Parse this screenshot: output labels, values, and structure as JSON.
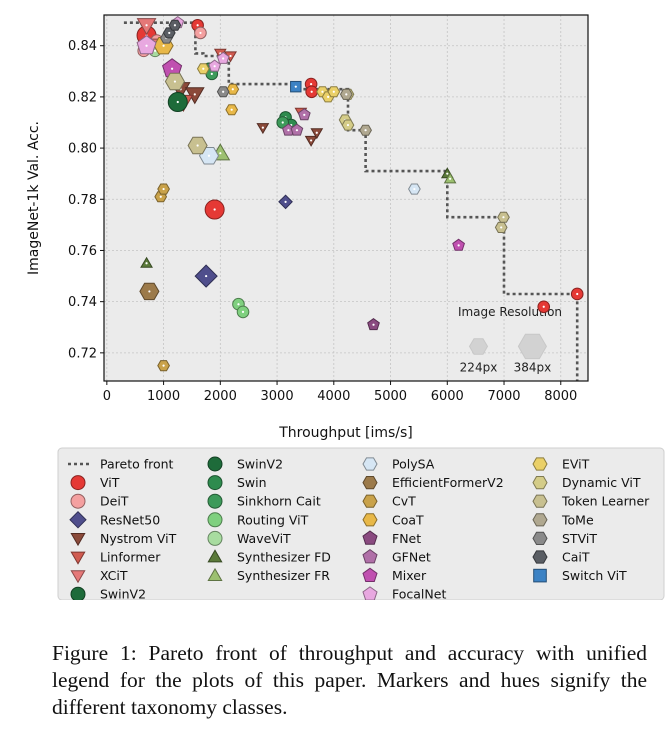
{
  "chart_data": {
    "type": "scatter",
    "xlabel": "Throughput [ims/s]",
    "ylabel": "ImageNet-1k Val. Acc.",
    "xlim": [
      -50,
      8480
    ],
    "ylim": [
      0.709,
      0.852
    ],
    "xticks": [
      0,
      1000,
      2000,
      3000,
      4000,
      5000,
      6000,
      7000,
      8000
    ],
    "xtick_labels": [
      "0",
      "1000",
      "2000",
      "3000",
      "4000",
      "5000",
      "6000",
      "7000",
      "8000"
    ],
    "yticks": [
      0.72,
      0.74,
      0.76,
      0.78,
      0.8,
      0.82,
      0.84
    ],
    "ytick_labels": [
      "0.72",
      "0.74",
      "0.76",
      "0.78",
      "0.80",
      "0.82",
      "0.84"
    ],
    "grid": true,
    "legend_position": "bottom",
    "pareto_front": {
      "name": "Pareto front",
      "x": [
        300,
        1560,
        1560,
        1700,
        1700,
        2150,
        2150,
        3300,
        3300,
        4250,
        4250,
        4560,
        4560,
        6000,
        6000,
        7000,
        7000,
        8290,
        8290
      ],
      "y": [
        0.849,
        0.849,
        0.837,
        0.837,
        0.836,
        0.836,
        0.825,
        0.825,
        0.823,
        0.823,
        0.807,
        0.807,
        0.791,
        0.791,
        0.773,
        0.773,
        0.743,
        0.743,
        0.709
      ]
    },
    "resolution_key": {
      "title": "Image Resolution",
      "items": [
        {
          "label": "224px",
          "x": 6550,
          "y": 0.7225
        },
        {
          "label": "384px",
          "x": 7500,
          "y": 0.7225
        }
      ]
    },
    "series": [
      {
        "name": "ViT",
        "marker": "circle",
        "color": "#e53935",
        "points": [
          [
            1900,
            0.776,
            1
          ],
          [
            700,
            0.844,
            1
          ],
          [
            1600,
            0.848,
            0
          ],
          [
            3600,
            0.825,
            0
          ],
          [
            3610,
            0.822,
            0
          ],
          [
            7700,
            0.738,
            0
          ],
          [
            8290,
            0.743,
            0
          ]
        ]
      },
      {
        "name": "DeiT",
        "marker": "circle",
        "color": "#f4a0a0",
        "points": [
          [
            650,
            0.838,
            0
          ],
          [
            880,
            0.842,
            0
          ],
          [
            1650,
            0.845,
            0
          ]
        ]
      },
      {
        "name": "ResNet50",
        "marker": "diamond",
        "color": "#4f4e8c",
        "points": [
          [
            1750,
            0.75,
            1
          ],
          [
            3150,
            0.779,
            0
          ]
        ]
      },
      {
        "name": "Nystrom ViT",
        "marker": "triangle-down",
        "color": "#8b4a3a",
        "points": [
          [
            1300,
            0.823,
            1
          ],
          [
            1550,
            0.821,
            1
          ],
          [
            2750,
            0.808,
            0
          ],
          [
            3600,
            0.803,
            0
          ],
          [
            3700,
            0.806,
            0
          ]
        ]
      },
      {
        "name": "Linformer",
        "marker": "triangle-down",
        "color": "#d05b50",
        "points": [
          [
            1350,
            0.818,
            1
          ],
          [
            2000,
            0.837,
            0
          ],
          [
            2180,
            0.836,
            0
          ],
          [
            3420,
            0.814,
            0
          ]
        ]
      },
      {
        "name": "XCiT",
        "marker": "triangle-down",
        "color": "#e57878",
        "points": [
          [
            700,
            0.848,
            1
          ],
          [
            920,
            0.84,
            1
          ]
        ]
      },
      {
        "name": "SwinV2",
        "marker": "circle",
        "color": "#1e6b3a",
        "points": [
          [
            1250,
            0.818,
            1
          ]
        ]
      },
      {
        "name": "Swin",
        "marker": "circle",
        "color": "#2e8b4e",
        "points": [
          [
            1800,
            0.831,
            0
          ],
          [
            3150,
            0.812,
            0
          ],
          [
            3250,
            0.809,
            0
          ]
        ]
      },
      {
        "name": "Sinkhorn Cait",
        "marker": "circle",
        "color": "#3d9a5a",
        "points": [
          [
            1850,
            0.829,
            0
          ],
          [
            3100,
            0.81,
            0
          ]
        ]
      },
      {
        "name": "Routing ViT",
        "marker": "circle",
        "color": "#7fd07f",
        "points": [
          [
            2320,
            0.739,
            0
          ],
          [
            2400,
            0.736,
            0
          ]
        ]
      },
      {
        "name": "WaveViT",
        "marker": "circle",
        "color": "#a8dca0",
        "points": [
          [
            850,
            0.838,
            0
          ]
        ]
      },
      {
        "name": "Synthesizer FD",
        "marker": "triangle-up",
        "color": "#5b7a3a",
        "points": [
          [
            700,
            0.755,
            0
          ],
          [
            6000,
            0.79,
            0
          ]
        ]
      },
      {
        "name": "Synthesizer FR",
        "marker": "triangle-up",
        "color": "#9cc070",
        "points": [
          [
            2000,
            0.798,
            1
          ],
          [
            6050,
            0.788,
            0
          ]
        ]
      },
      {
        "name": "PolySA",
        "marker": "hexagon",
        "color": "#d6e6f4",
        "points": [
          [
            1800,
            0.797,
            1
          ],
          [
            5420,
            0.784,
            0
          ]
        ]
      },
      {
        "name": "EfficientFormerV2",
        "marker": "hexagon",
        "color": "#9c7a4a",
        "points": [
          [
            750,
            0.744,
            1
          ]
        ]
      },
      {
        "name": "CvT",
        "marker": "hexagon",
        "color": "#c9a24a",
        "points": [
          [
            950,
            0.781,
            0
          ],
          [
            1000,
            0.784,
            0
          ],
          [
            1000,
            0.715,
            0
          ]
        ]
      },
      {
        "name": "CoaT",
        "marker": "hexagon",
        "color": "#e8b848",
        "points": [
          [
            1000,
            0.84,
            1
          ],
          [
            2220,
            0.823,
            0
          ],
          [
            2200,
            0.815,
            0
          ]
        ]
      },
      {
        "name": "FNet",
        "marker": "pentagon",
        "color": "#8a4a80",
        "points": [
          [
            4700,
            0.731,
            0
          ]
        ]
      },
      {
        "name": "GFNet",
        "marker": "pentagon",
        "color": "#b070a8",
        "points": [
          [
            3200,
            0.807,
            0
          ],
          [
            3350,
            0.807,
            0
          ],
          [
            3480,
            0.813,
            0
          ]
        ]
      },
      {
        "name": "Mixer",
        "marker": "pentagon",
        "color": "#c050b0",
        "points": [
          [
            1150,
            0.831,
            1
          ],
          [
            6200,
            0.762,
            0
          ]
        ]
      },
      {
        "name": "FocalNet",
        "marker": "pentagon",
        "color": "#e8a8e0",
        "points": [
          [
            700,
            0.84,
            1
          ],
          [
            1900,
            0.832,
            0
          ],
          [
            2050,
            0.835,
            0
          ],
          [
            1250,
            0.849,
            0
          ]
        ]
      },
      {
        "name": "EViT",
        "marker": "hexagon",
        "color": "#ead068",
        "points": [
          [
            1700,
            0.831,
            0
          ],
          [
            3800,
            0.822,
            0
          ],
          [
            3900,
            0.82,
            0
          ],
          [
            4000,
            0.822,
            0
          ]
        ]
      },
      {
        "name": "Dynamic ViT",
        "marker": "hexagon",
        "color": "#d4cc88",
        "points": [
          [
            4200,
            0.811,
            0
          ],
          [
            4250,
            0.809,
            0
          ],
          [
            4250,
            0.821,
            0
          ]
        ]
      },
      {
        "name": "Token Learner",
        "marker": "hexagon",
        "color": "#c8c090",
        "points": [
          [
            1600,
            0.801,
            1
          ],
          [
            1200,
            0.826,
            1
          ],
          [
            6950,
            0.769,
            0
          ],
          [
            6990,
            0.773,
            0
          ]
        ]
      },
      {
        "name": "ToMe",
        "marker": "hexagon",
        "color": "#b0a890",
        "points": [
          [
            4560,
            0.807,
            0
          ],
          [
            4220,
            0.821,
            0
          ]
        ]
      },
      {
        "name": "STViT",
        "marker": "hexagon",
        "color": "#8a8a8a",
        "points": [
          [
            2050,
            0.822,
            0
          ],
          [
            1050,
            0.843,
            0
          ]
        ]
      },
      {
        "name": "CaiT",
        "marker": "hexagon",
        "color": "#5a5e64",
        "points": [
          [
            1100,
            0.845,
            0
          ],
          [
            1200,
            0.848,
            0
          ]
        ]
      },
      {
        "name": "Switch ViT",
        "marker": "square",
        "color": "#3c82c4",
        "points": [
          [
            3330,
            0.824,
            0
          ]
        ]
      }
    ]
  },
  "caption": "Figure 1: Pareto front of throughput and accuracy with unified legend for the plots of this paper. Markers and hues signify the different taxonomy classes."
}
